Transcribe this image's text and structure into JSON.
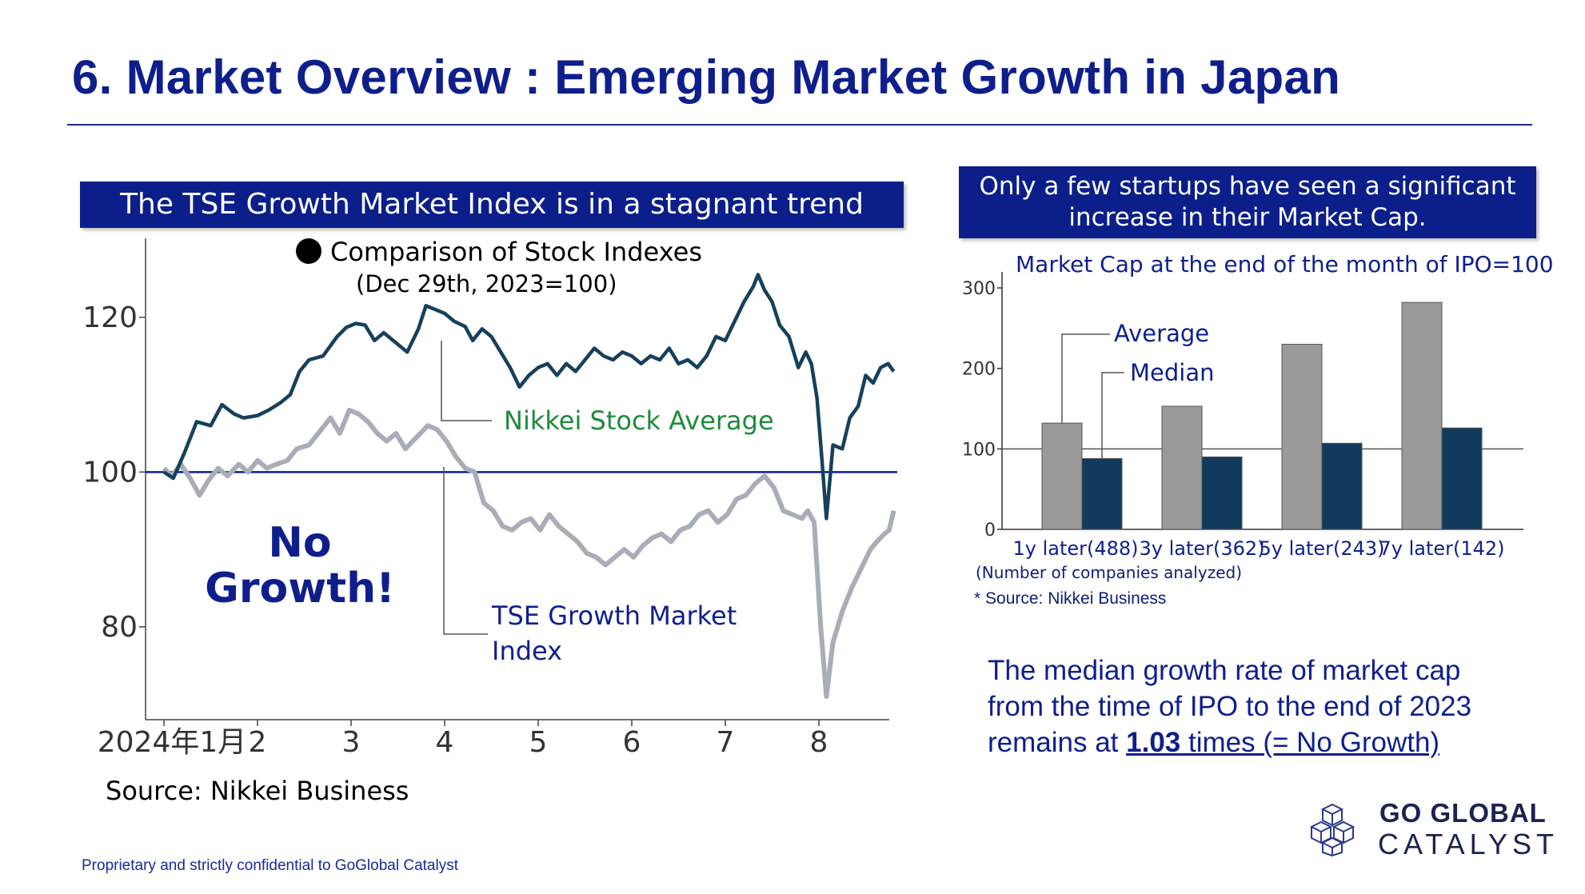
{
  "slide": {
    "title": "6. Market Overview : Emerging Market Growth in Japan",
    "footer": "Proprietary and strictly confidential to GoGlobal Catalyst"
  },
  "left_panel": {
    "banner": "The TSE Growth Market Index is in a stagnant trend",
    "source": "Source: Nikkei Business"
  },
  "right_panel": {
    "banner_line1": "Only a few startups have seen a significant",
    "banner_line2": "increase in their Market Cap.",
    "count_note": "(Number of companies analyzed)",
    "source": "* Source: Nikkei Business"
  },
  "summary": {
    "line1": "The median growth rate of market cap",
    "line2": "from the time of IPO to the end of 2023",
    "line3_prefix": "remains at ",
    "value": "1.03",
    "line3_suffix": " times (= No Growth)"
  },
  "logo": {
    "line1": "GO GLOBAL",
    "line2": "CATALYST",
    "icon": "cube-cluster-icon"
  },
  "colors": {
    "navy": "#0e1f8c",
    "dark_teal": "#16405c",
    "grey_line": "#a9adb8",
    "bar_grey": "#9a9a9a",
    "bar_navy": "#113a5c",
    "nikkei_green": "#1f8a3c"
  },
  "chart_data": [
    {
      "type": "line",
      "title": "Comparison of Stock Indexes",
      "subtitle": "(Dec 29th, 2023=100)",
      "ylim": [
        68,
        130
      ],
      "y_ticks": [
        80,
        100,
        120
      ],
      "x_ticks": [
        "2024年1月",
        "2",
        "3",
        "4",
        "5",
        "6",
        "7",
        "8"
      ],
      "x_tick_positions": [
        0,
        1,
        2,
        3,
        4,
        5,
        6,
        7
      ],
      "reference_line": 100,
      "annotation": [
        "No",
        "Growth!"
      ],
      "series": [
        {
          "name": "Nikkei Stock Average",
          "color": "#16405c",
          "points": [
            [
              0.0,
              100.0
            ],
            [
              0.1,
              99.2
            ],
            [
              0.22,
              102.5
            ],
            [
              0.35,
              106.5
            ],
            [
              0.5,
              106.0
            ],
            [
              0.62,
              108.7
            ],
            [
              0.75,
              107.5
            ],
            [
              0.85,
              107.0
            ],
            [
              1.0,
              107.3
            ],
            [
              1.12,
              108.0
            ],
            [
              1.25,
              109.0
            ],
            [
              1.35,
              110.0
            ],
            [
              1.45,
              113.0
            ],
            [
              1.55,
              114.5
            ],
            [
              1.7,
              115.0
            ],
            [
              1.85,
              117.5
            ],
            [
              1.95,
              118.7
            ],
            [
              2.05,
              119.2
            ],
            [
              2.15,
              119.0
            ],
            [
              2.25,
              117.0
            ],
            [
              2.35,
              118.0
            ],
            [
              2.5,
              116.5
            ],
            [
              2.6,
              115.5
            ],
            [
              2.72,
              118.5
            ],
            [
              2.8,
              121.5
            ],
            [
              2.9,
              121.0
            ],
            [
              3.0,
              120.5
            ],
            [
              3.1,
              119.5
            ],
            [
              3.22,
              118.8
            ],
            [
              3.3,
              117.0
            ],
            [
              3.4,
              118.5
            ],
            [
              3.5,
              117.5
            ],
            [
              3.6,
              115.5
            ],
            [
              3.7,
              113.5
            ],
            [
              3.8,
              111.0
            ],
            [
              3.9,
              112.5
            ],
            [
              4.0,
              113.5
            ],
            [
              4.1,
              114.0
            ],
            [
              4.2,
              112.5
            ],
            [
              4.3,
              114.0
            ],
            [
              4.4,
              113.0
            ],
            [
              4.5,
              114.5
            ],
            [
              4.6,
              116.0
            ],
            [
              4.7,
              115.0
            ],
            [
              4.8,
              114.5
            ],
            [
              4.9,
              115.5
            ],
            [
              5.0,
              115.0
            ],
            [
              5.1,
              114.0
            ],
            [
              5.2,
              115.0
            ],
            [
              5.3,
              114.5
            ],
            [
              5.4,
              116.0
            ],
            [
              5.5,
              114.0
            ],
            [
              5.6,
              114.5
            ],
            [
              5.7,
              113.5
            ],
            [
              5.8,
              115.0
            ],
            [
              5.9,
              117.5
            ],
            [
              6.0,
              117.0
            ],
            [
              6.1,
              119.5
            ],
            [
              6.2,
              122.0
            ],
            [
              6.3,
              124.0
            ],
            [
              6.35,
              125.5
            ],
            [
              6.42,
              123.5
            ],
            [
              6.5,
              122.0
            ],
            [
              6.58,
              119.0
            ],
            [
              6.68,
              117.5
            ],
            [
              6.78,
              113.5
            ],
            [
              6.86,
              115.5
            ],
            [
              6.92,
              114.0
            ],
            [
              6.98,
              109.5
            ],
            [
              7.03,
              102.0
            ],
            [
              7.08,
              94.0
            ],
            [
              7.15,
              103.5
            ],
            [
              7.25,
              103.0
            ],
            [
              7.33,
              107.0
            ],
            [
              7.42,
              108.5
            ],
            [
              7.5,
              112.5
            ],
            [
              7.58,
              111.5
            ],
            [
              7.66,
              113.5
            ],
            [
              7.74,
              114.0
            ],
            [
              7.8,
              113.0
            ]
          ]
        },
        {
          "name": "TSE Growth Market Index",
          "color": "#a9adb8",
          "points": [
            [
              0.0,
              100.5
            ],
            [
              0.08,
              99.5
            ],
            [
              0.18,
              101.0
            ],
            [
              0.28,
              99.2
            ],
            [
              0.38,
              97.0
            ],
            [
              0.48,
              99.0
            ],
            [
              0.58,
              100.5
            ],
            [
              0.68,
              99.5
            ],
            [
              0.8,
              101.0
            ],
            [
              0.9,
              100.0
            ],
            [
              1.0,
              101.5
            ],
            [
              1.1,
              100.5
            ],
            [
              1.2,
              101.0
            ],
            [
              1.32,
              101.5
            ],
            [
              1.42,
              103.0
            ],
            [
              1.55,
              103.5
            ],
            [
              1.65,
              105.0
            ],
            [
              1.78,
              107.0
            ],
            [
              1.88,
              105.0
            ],
            [
              1.98,
              108.0
            ],
            [
              2.08,
              107.5
            ],
            [
              2.18,
              106.5
            ],
            [
              2.28,
              105.0
            ],
            [
              2.38,
              104.0
            ],
            [
              2.48,
              105.0
            ],
            [
              2.58,
              103.0
            ],
            [
              2.7,
              104.5
            ],
            [
              2.82,
              106.0
            ],
            [
              2.92,
              105.5
            ],
            [
              3.02,
              104.0
            ],
            [
              3.12,
              102.0
            ],
            [
              3.22,
              100.5
            ],
            [
              3.32,
              100.0
            ],
            [
              3.42,
              96.0
            ],
            [
              3.52,
              95.0
            ],
            [
              3.62,
              93.0
            ],
            [
              3.72,
              92.5
            ],
            [
              3.82,
              93.5
            ],
            [
              3.92,
              94.0
            ],
            [
              4.02,
              92.5
            ],
            [
              4.12,
              94.5
            ],
            [
              4.22,
              93.0
            ],
            [
              4.32,
              92.0
            ],
            [
              4.42,
              91.0
            ],
            [
              4.52,
              89.5
            ],
            [
              4.62,
              89.0
            ],
            [
              4.72,
              88.0
            ],
            [
              4.82,
              89.0
            ],
            [
              4.92,
              90.0
            ],
            [
              5.02,
              89.0
            ],
            [
              5.12,
              90.5
            ],
            [
              5.22,
              91.5
            ],
            [
              5.32,
              92.0
            ],
            [
              5.42,
              91.0
            ],
            [
              5.52,
              92.5
            ],
            [
              5.62,
              93.0
            ],
            [
              5.72,
              94.5
            ],
            [
              5.82,
              95.0
            ],
            [
              5.92,
              93.5
            ],
            [
              6.02,
              94.5
            ],
            [
              6.12,
              96.5
            ],
            [
              6.22,
              97.0
            ],
            [
              6.32,
              98.5
            ],
            [
              6.42,
              99.5
            ],
            [
              6.52,
              98.0
            ],
            [
              6.62,
              95.0
            ],
            [
              6.72,
              94.5
            ],
            [
              6.82,
              94.0
            ],
            [
              6.88,
              95.0
            ],
            [
              6.95,
              93.5
            ],
            [
              7.02,
              80.0
            ],
            [
              7.08,
              71.0
            ],
            [
              7.15,
              78.0
            ],
            [
              7.25,
              82.0
            ],
            [
              7.35,
              85.0
            ],
            [
              7.45,
              87.5
            ],
            [
              7.55,
              90.0
            ],
            [
              7.62,
              91.0
            ],
            [
              7.7,
              92.0
            ],
            [
              7.75,
              92.5
            ],
            [
              7.8,
              95.0
            ]
          ]
        }
      ]
    },
    {
      "type": "bar",
      "title": "Market Cap at the end of the month of IPO=100",
      "categories": [
        "1y later(488)",
        "3y later(362)",
        "5y later(243)",
        "7y later(142)"
      ],
      "ylim": [
        0,
        310
      ],
      "y_ticks": [
        0,
        100,
        200,
        300
      ],
      "reference_line": 100,
      "series": [
        {
          "name": "Average",
          "color": "#9a9a9a",
          "values": [
            132,
            153,
            230,
            282
          ]
        },
        {
          "name": "Median",
          "color": "#113a5c",
          "values": [
            88,
            90,
            107,
            126
          ]
        }
      ]
    }
  ]
}
